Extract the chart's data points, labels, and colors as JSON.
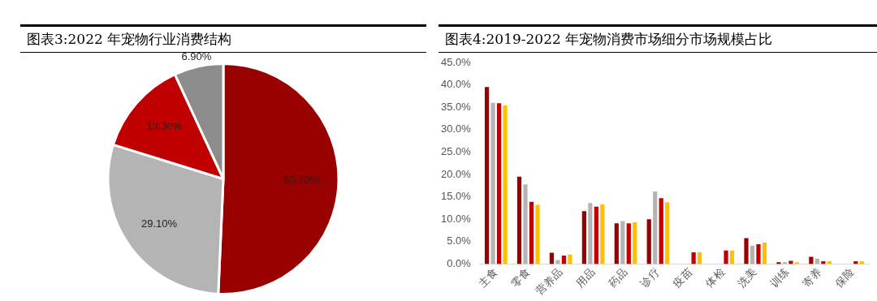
{
  "chart_data": [
    {
      "type": "pie",
      "title": "图表3:2022 年宠物行业消费结构",
      "categories": [
        null,
        null,
        null,
        null
      ],
      "values": [
        50.7,
        29.1,
        13.3,
        6.9
      ],
      "colors": [
        "#990000",
        "#b4b4b4",
        "#c00000",
        "#8c8c8c"
      ],
      "value_labels": [
        "50.70%",
        "29.10%",
        "13.30%",
        "6.90%"
      ],
      "legend": false
    },
    {
      "type": "bar",
      "title": "图表4:2019-2022 年宠物消费市场细分市场规模占比",
      "categories": [
        "主食",
        "零食",
        "营养品",
        "用品",
        "药品",
        "诊疗",
        "疫苗",
        "体检",
        "洗美",
        "训练",
        "寄养",
        "保险"
      ],
      "series": [
        {
          "color": "#990000",
          "values": [
            39.5,
            19.5,
            2.5,
            11.8,
            9.1,
            10.0,
            null,
            null,
            5.8,
            0.4,
            1.6,
            null
          ]
        },
        {
          "color": "#b4b4b4",
          "values": [
            36.0,
            17.8,
            0.9,
            13.6,
            9.6,
            16.2,
            null,
            null,
            4.1,
            0.4,
            1.2,
            null
          ]
        },
        {
          "color": "#c00000",
          "values": [
            35.9,
            13.9,
            1.9,
            12.8,
            9.1,
            14.7,
            2.6,
            3.0,
            4.4,
            0.7,
            0.6,
            0.6
          ]
        },
        {
          "color": "#ffc000",
          "values": [
            35.4,
            13.2,
            2.1,
            13.3,
            9.3,
            13.8,
            2.6,
            3.0,
            4.8,
            0.4,
            0.6,
            0.6
          ]
        }
      ],
      "ylim": [
        0,
        45
      ],
      "yticks": [
        {
          "value": 0,
          "label": "0.0%"
        },
        {
          "value": 5,
          "label": "5.0%"
        },
        {
          "value": 10,
          "label": "10.0%"
        },
        {
          "value": 15,
          "label": "15.0%"
        },
        {
          "value": 20,
          "label": "20.0%"
        },
        {
          "value": 25,
          "label": "25.0%"
        },
        {
          "value": 30,
          "label": "30.0%"
        },
        {
          "value": 35,
          "label": "35.0%"
        },
        {
          "value": 40,
          "label": "40.0%"
        },
        {
          "value": 45,
          "label": "45.0%"
        }
      ],
      "grid": false,
      "legend": false
    }
  ]
}
